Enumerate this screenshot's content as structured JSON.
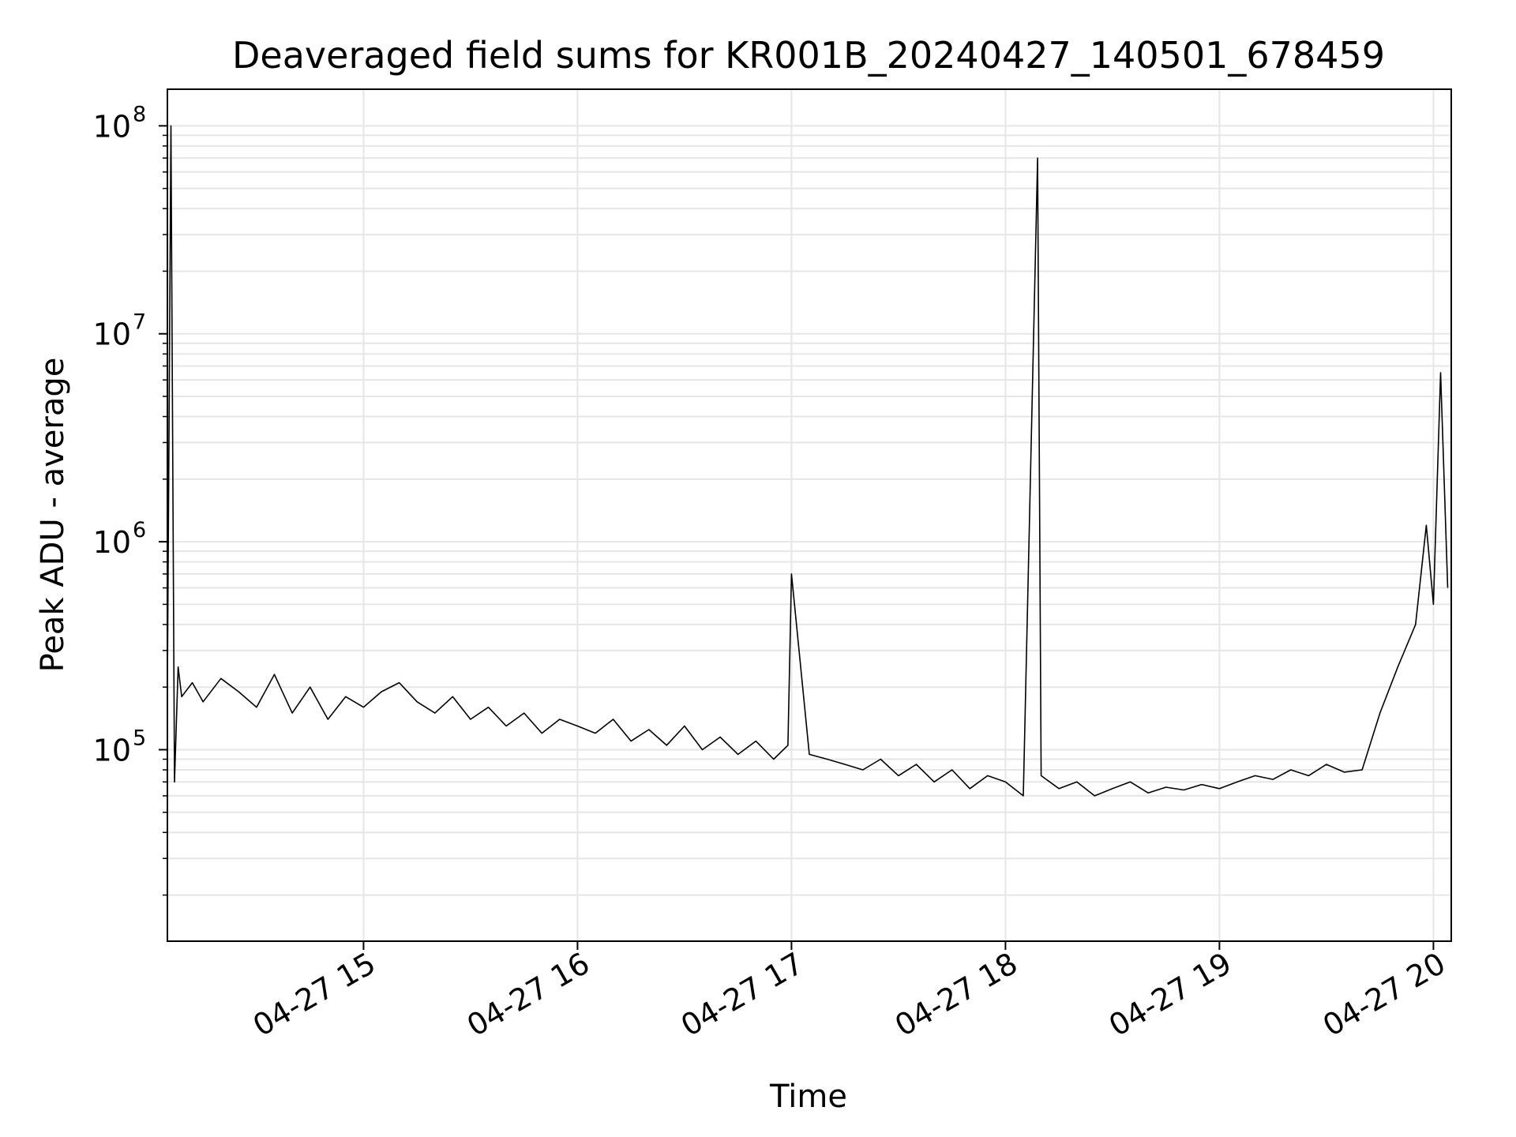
{
  "chart_data": {
    "type": "line",
    "title": "Deaveraged field sums for KR001B_20240427_140501_678459",
    "xlabel": "Time",
    "ylabel": "Peak ADU - average",
    "x_scale": "time",
    "y_scale": "log",
    "xlim": [
      "2024-04-27 14:05",
      "2024-04-27 20:05"
    ],
    "ylim": [
      12000,
      150000000
    ],
    "x_ticks": [
      {
        "value": "2024-04-27 15:00",
        "label": "04-27 15"
      },
      {
        "value": "2024-04-27 16:00",
        "label": "04-27 16"
      },
      {
        "value": "2024-04-27 17:00",
        "label": "04-27 17"
      },
      {
        "value": "2024-04-27 18:00",
        "label": "04-27 18"
      },
      {
        "value": "2024-04-27 19:00",
        "label": "04-27 19"
      },
      {
        "value": "2024-04-27 20:00",
        "label": "04-27 20"
      }
    ],
    "y_ticks": [
      {
        "value": 100000,
        "base": "10",
        "exp": "5"
      },
      {
        "value": 1000000,
        "base": "10",
        "exp": "6"
      },
      {
        "value": 10000000,
        "base": "10",
        "exp": "7"
      },
      {
        "value": 100000000,
        "base": "10",
        "exp": "8"
      }
    ],
    "grid": true,
    "series": [
      {
        "color": "#000000",
        "x": [
          "2024-04-27 14:05",
          "2024-04-27 14:06",
          "2024-04-27 14:07",
          "2024-04-27 14:08",
          "2024-04-27 14:09",
          "2024-04-27 14:12",
          "2024-04-27 14:15",
          "2024-04-27 14:20",
          "2024-04-27 14:25",
          "2024-04-27 14:30",
          "2024-04-27 14:35",
          "2024-04-27 14:40",
          "2024-04-27 14:45",
          "2024-04-27 14:50",
          "2024-04-27 14:55",
          "2024-04-27 15:00",
          "2024-04-27 15:05",
          "2024-04-27 15:10",
          "2024-04-27 15:15",
          "2024-04-27 15:20",
          "2024-04-27 15:25",
          "2024-04-27 15:30",
          "2024-04-27 15:35",
          "2024-04-27 15:40",
          "2024-04-27 15:45",
          "2024-04-27 15:50",
          "2024-04-27 15:55",
          "2024-04-27 16:00",
          "2024-04-27 16:05",
          "2024-04-27 16:10",
          "2024-04-27 16:15",
          "2024-04-27 16:20",
          "2024-04-27 16:25",
          "2024-04-27 16:30",
          "2024-04-27 16:35",
          "2024-04-27 16:40",
          "2024-04-27 16:45",
          "2024-04-27 16:50",
          "2024-04-27 16:55",
          "2024-04-27 16:59",
          "2024-04-27 17:00",
          "2024-04-27 17:05",
          "2024-04-27 17:10",
          "2024-04-27 17:15",
          "2024-04-27 17:20",
          "2024-04-27 17:25",
          "2024-04-27 17:30",
          "2024-04-27 17:35",
          "2024-04-27 17:40",
          "2024-04-27 17:45",
          "2024-04-27 17:50",
          "2024-04-27 17:55",
          "2024-04-27 18:00",
          "2024-04-27 18:05",
          "2024-04-27 18:09",
          "2024-04-27 18:10",
          "2024-04-27 18:15",
          "2024-04-27 18:20",
          "2024-04-27 18:25",
          "2024-04-27 18:30",
          "2024-04-27 18:35",
          "2024-04-27 18:40",
          "2024-04-27 18:45",
          "2024-04-27 18:50",
          "2024-04-27 18:55",
          "2024-04-27 19:00",
          "2024-04-27 19:05",
          "2024-04-27 19:10",
          "2024-04-27 19:15",
          "2024-04-27 19:20",
          "2024-04-27 19:25",
          "2024-04-27 19:30",
          "2024-04-27 19:35",
          "2024-04-27 19:40",
          "2024-04-27 19:45",
          "2024-04-27 19:50",
          "2024-04-27 19:55",
          "2024-04-27 19:58",
          "2024-04-27 20:00",
          "2024-04-27 20:02",
          "2024-04-27 20:04"
        ],
        "y": [
          200000,
          100000000,
          70000,
          250000,
          180000,
          210000,
          170000,
          220000,
          190000,
          160000,
          230000,
          150000,
          200000,
          140000,
          180000,
          160000,
          190000,
          210000,
          170000,
          150000,
          180000,
          140000,
          160000,
          130000,
          150000,
          120000,
          140000,
          130000,
          120000,
          140000,
          110000,
          125000,
          105000,
          130000,
          100000,
          115000,
          95000,
          110000,
          90000,
          105000,
          700000,
          95000,
          90000,
          85000,
          80000,
          90000,
          75000,
          85000,
          70000,
          80000,
          65000,
          75000,
          70000,
          60000,
          70000000,
          75000,
          65000,
          70000,
          60000,
          65000,
          70000,
          62000,
          66000,
          64000,
          68000,
          65000,
          70000,
          75000,
          72000,
          80000,
          75000,
          85000,
          78000,
          80000,
          150000,
          250000,
          400000,
          1200000,
          500000,
          6500000,
          600000
        ]
      }
    ]
  }
}
